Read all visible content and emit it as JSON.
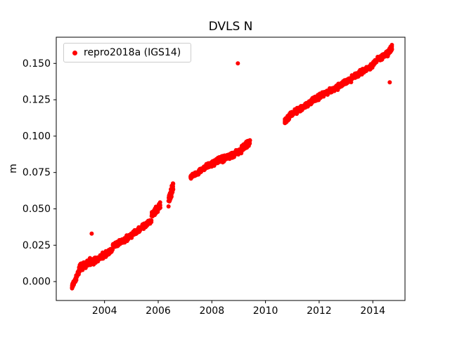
{
  "chart_data": {
    "type": "scatter",
    "title": "DVLS N",
    "xlabel": "",
    "ylabel": "m",
    "xlim": [
      2002.2,
      2015.2
    ],
    "ylim": [
      -0.013,
      0.168
    ],
    "xticks": [
      2004,
      2006,
      2008,
      2010,
      2012,
      2014
    ],
    "xtick_labels": [
      "2004",
      "2006",
      "2008",
      "2010",
      "2012",
      "2014"
    ],
    "yticks": [
      0.0,
      0.025,
      0.05,
      0.075,
      0.1,
      0.125,
      0.15
    ],
    "ytick_labels": [
      "0.000",
      "0.025",
      "0.050",
      "0.075",
      "0.100",
      "0.125",
      "0.150"
    ],
    "grid": false,
    "legend_position": "upper left",
    "series": [
      {
        "name": "repro2018a (IGS14)",
        "marker": "point",
        "color": "#ff0000",
        "segments": [
          {
            "x_start": 2002.78,
            "x_end": 2003.08,
            "y_start": -0.004,
            "y_end": 0.008,
            "n": 55,
            "y_jitter": 0.002
          },
          {
            "x_start": 2003.05,
            "x_end": 2003.5,
            "y_start": 0.009,
            "y_end": 0.014,
            "n": 120,
            "y_jitter": 0.0028
          },
          {
            "x_start": 2003.5,
            "x_end": 2004.3,
            "y_start": 0.013,
            "y_end": 0.022,
            "n": 140,
            "y_jitter": 0.0025
          },
          {
            "x_start": 2004.3,
            "x_end": 2005.05,
            "y_start": 0.024,
            "y_end": 0.032,
            "n": 120,
            "y_jitter": 0.0022
          },
          {
            "x_start": 2005.05,
            "x_end": 2005.75,
            "y_start": 0.033,
            "y_end": 0.042,
            "n": 110,
            "y_jitter": 0.0022
          },
          {
            "x_start": 2005.75,
            "x_end": 2006.08,
            "y_start": 0.045,
            "y_end": 0.053,
            "n": 60,
            "y_jitter": 0.003
          },
          {
            "x_start": 2006.38,
            "x_end": 2006.56,
            "y_start": 0.055,
            "y_end": 0.066,
            "n": 50,
            "y_jitter": 0.004
          },
          {
            "x_start": 2007.2,
            "x_end": 2007.6,
            "y_start": 0.072,
            "y_end": 0.076,
            "n": 70,
            "y_jitter": 0.002
          },
          {
            "x_start": 2007.6,
            "x_end": 2008.4,
            "y_start": 0.077,
            "y_end": 0.085,
            "n": 140,
            "y_jitter": 0.0022
          },
          {
            "x_start": 2008.4,
            "x_end": 2009.1,
            "y_start": 0.084,
            "y_end": 0.09,
            "n": 120,
            "y_jitter": 0.0022
          },
          {
            "x_start": 2009.1,
            "x_end": 2009.42,
            "y_start": 0.091,
            "y_end": 0.096,
            "n": 80,
            "y_jitter": 0.0025
          },
          {
            "x_start": 2010.72,
            "x_end": 2010.88,
            "y_start": 0.11,
            "y_end": 0.113,
            "n": 50,
            "y_jitter": 0.002
          },
          {
            "x_start": 2010.88,
            "x_end": 2011.6,
            "y_start": 0.114,
            "y_end": 0.122,
            "n": 120,
            "y_jitter": 0.0022
          },
          {
            "x_start": 2011.6,
            "x_end": 2012.4,
            "y_start": 0.123,
            "y_end": 0.131,
            "n": 130,
            "y_jitter": 0.0022
          },
          {
            "x_start": 2012.4,
            "x_end": 2013.2,
            "y_start": 0.131,
            "y_end": 0.139,
            "n": 130,
            "y_jitter": 0.0022
          },
          {
            "x_start": 2013.2,
            "x_end": 2014.0,
            "y_start": 0.14,
            "y_end": 0.149,
            "n": 130,
            "y_jitter": 0.0022
          },
          {
            "x_start": 2014.0,
            "x_end": 2014.55,
            "y_start": 0.15,
            "y_end": 0.157,
            "n": 100,
            "y_jitter": 0.0022
          },
          {
            "x_start": 2014.52,
            "x_end": 2014.72,
            "y_start": 0.156,
            "y_end": 0.161,
            "n": 70,
            "y_jitter": 0.0025
          }
        ],
        "outliers": [
          [
            2003.52,
            0.033
          ],
          [
            2008.97,
            0.15
          ],
          [
            2014.63,
            0.137
          ]
        ]
      }
    ],
    "colors": {
      "marker": "#ff0000",
      "axes": "#000000",
      "legend_border": "#cccccc",
      "background": "#ffffff"
    }
  }
}
